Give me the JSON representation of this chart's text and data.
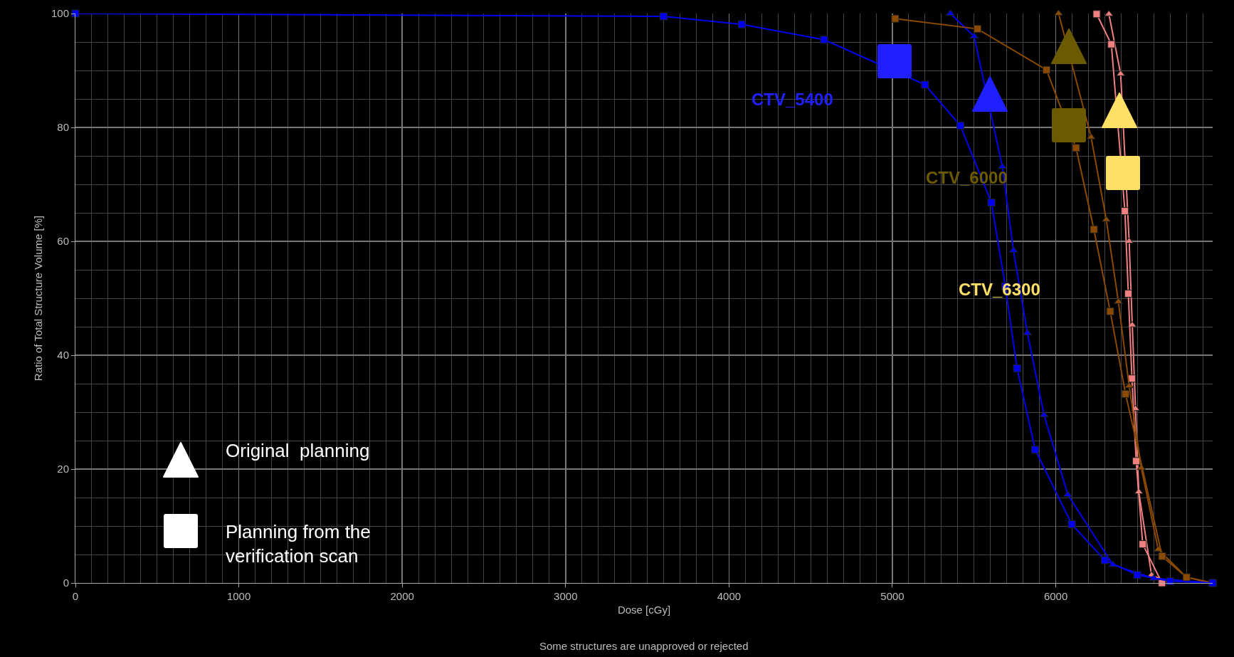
{
  "chart_data": {
    "type": "line",
    "xlabel": "Dose [cGy]",
    "ylabel": "Ratio of Total Structure Volume [%]",
    "xlim": [
      0,
      6960
    ],
    "xticks": [
      0,
      1000,
      2000,
      3000,
      4000,
      5000,
      6000
    ],
    "ylim": [
      0,
      100
    ],
    "yticks": [
      0,
      20,
      40,
      60,
      80,
      100
    ],
    "grid": true,
    "line_style": "solid",
    "series": [
      {
        "color": "#f08080",
        "marker": "triangle",
        "x": [
          6325,
          6397,
          6449,
          6468,
          6488,
          6508,
          6586,
          6700
        ],
        "values": [
          99.9,
          89.4,
          60,
          45.3,
          30.6,
          16,
          1.4,
          0
        ]
      },
      {
        "color": "#f08080",
        "marker": "square",
        "x": [
          6250,
          6340,
          6423,
          6444,
          6466,
          6492,
          6532,
          6650
        ],
        "values": [
          99.9,
          94.6,
          65.3,
          50.8,
          35.9,
          21.4,
          6.8,
          0
        ]
      },
      {
        "color": "#8b4a00",
        "marker": "triangle",
        "x": [
          6017,
          6216,
          6309,
          6383,
          6449,
          6523,
          6627,
          6800,
          6960
        ],
        "values": [
          100,
          78.3,
          63.8,
          49.4,
          34.6,
          20.2,
          5.9,
          1,
          0
        ]
      },
      {
        "color": "#0000ee",
        "marker": "triangle",
        "x": [
          5355,
          5500,
          5673,
          5741,
          5826,
          5928,
          6074,
          6349,
          6600,
          6960
        ],
        "values": [
          100,
          96,
          73.1,
          58.4,
          43.9,
          29.5,
          15.5,
          3.2,
          0.8,
          0
        ]
      },
      {
        "color": "#8b4a00",
        "marker": "square",
        "x": [
          5017,
          5521,
          5943,
          6124,
          6233,
          6333,
          6427,
          6651,
          6800,
          6960
        ],
        "values": [
          99.1,
          97.3,
          90.1,
          76.4,
          62.1,
          47.7,
          33.2,
          4.7,
          1,
          0
        ]
      },
      {
        "color": "#0000ee",
        "marker": "square",
        "x": [
          0,
          3600,
          4078,
          4582,
          5200,
          5416,
          5606,
          5691,
          5763,
          5874,
          6098,
          6300,
          6499,
          6700,
          6960
        ],
        "values": [
          100,
          99.5,
          98.1,
          95.4,
          87.5,
          80.3,
          66.8,
          52.1,
          37.7,
          23.4,
          10.3,
          4,
          1.4,
          0.3,
          0
        ]
      }
    ],
    "annotations": [
      "CTV_5400",
      "CTV_6000",
      "CTV_6300",
      "Original  planning",
      "Planning from the verification scan",
      "Some structures are unapproved or rejected"
    ]
  }
}
